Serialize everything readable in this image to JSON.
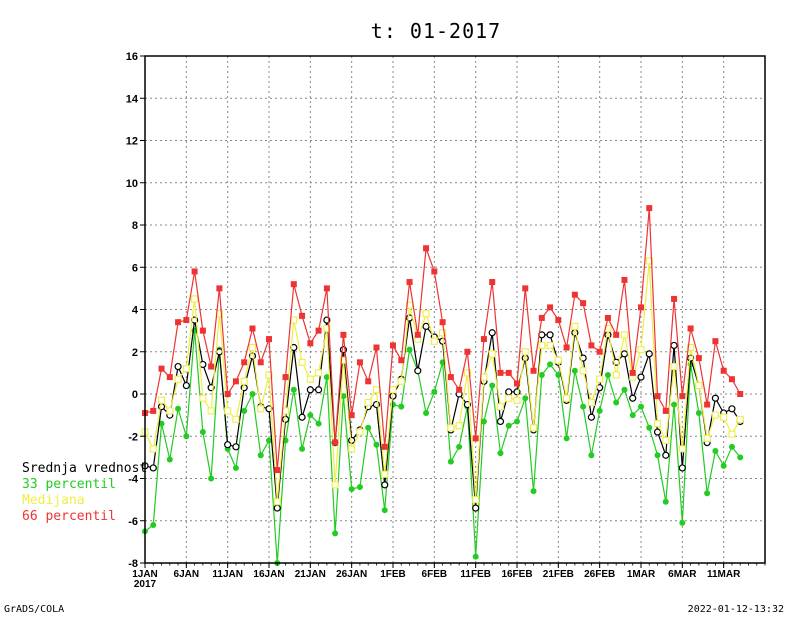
{
  "chart_data": {
    "type": "line",
    "title": "t: 01-2017",
    "ylim": [
      -8,
      16
    ],
    "yticks": [
      -8,
      -6,
      -4,
      -2,
      0,
      2,
      4,
      6,
      8,
      10,
      12,
      14,
      16
    ],
    "grid": true,
    "x_start": "2017-01-01",
    "x_end": "2017-03-17",
    "x_tick_labels": [
      "1JAN",
      "6JAN",
      "11JAN",
      "16JAN",
      "21JAN",
      "26JAN",
      "1FEB",
      "6FEB",
      "11FEB",
      "16FEB",
      "21FEB",
      "26FEB",
      "1MAR",
      "6MAR",
      "11MAR"
    ],
    "x_year_label": "2017",
    "legend_position": "left",
    "series": [
      {
        "name": "Srednja vrednost",
        "color": "#000000",
        "marker": "open-circle",
        "values": [
          -3.4,
          -3.5,
          -0.6,
          -1.0,
          1.3,
          0.4,
          3.5,
          1.4,
          0.3,
          2.0,
          -2.4,
          -2.5,
          0.3,
          1.8,
          -0.6,
          -0.7,
          -5.4,
          -1.2,
          2.2,
          -1.1,
          0.2,
          0.2,
          3.5,
          -2.3,
          2.1,
          -2.2,
          -1.7,
          -0.6,
          -0.5,
          -4.3,
          -0.1,
          0.7,
          3.6,
          1.1,
          3.2,
          2.7,
          2.5,
          -1.7,
          0.0,
          -0.5,
          -5.4,
          0.6,
          2.9,
          -1.3,
          0.1,
          0.1,
          1.7,
          -1.7,
          2.8,
          2.8,
          1.5,
          -0.3,
          2.9,
          1.7,
          -1.1,
          0.3,
          2.8,
          1.5,
          1.9,
          -0.2,
          0.8,
          1.9,
          -1.8,
          -2.9,
          2.3,
          -3.5,
          1.7,
          0.4,
          -2.3,
          -0.2,
          -0.9,
          -0.7,
          -1.3
        ]
      },
      {
        "name": "33 percentil",
        "color": "#22cc22",
        "marker": "filled-circle",
        "values": [
          -6.5,
          -6.2,
          -1.4,
          -3.1,
          -0.7,
          -2.0,
          3.0,
          -1.8,
          -4.0,
          2.1,
          -2.6,
          -3.5,
          -0.8,
          0.0,
          -2.9,
          -2.2,
          -8.0,
          -2.2,
          0.2,
          -2.6,
          -1.0,
          -1.4,
          0.8,
          -6.6,
          -0.1,
          -4.5,
          -4.4,
          -1.6,
          -2.4,
          -5.5,
          -0.5,
          -0.6,
          2.1,
          1.1,
          -0.9,
          0.1,
          1.5,
          -3.2,
          -2.5,
          -0.6,
          -7.7,
          -1.3,
          0.4,
          -2.8,
          -1.5,
          -1.3,
          -0.2,
          -4.6,
          0.9,
          1.4,
          0.9,
          -2.1,
          1.1,
          -0.6,
          -2.9,
          -0.8,
          0.9,
          -0.4,
          0.2,
          -1.0,
          -0.6,
          -1.6,
          -2.9,
          -5.1,
          -0.5,
          -6.1,
          1.4,
          -0.9,
          -4.7,
          -2.7,
          -3.4,
          -2.5,
          -3.0
        ]
      },
      {
        "name": "Medijana",
        "color": "#eeee44",
        "marker": "open-square",
        "values": [
          -1.8,
          -2.6,
          -0.3,
          -0.8,
          0.7,
          1.2,
          4.5,
          -0.2,
          -0.8,
          3.8,
          -0.8,
          -1.2,
          0.6,
          2.2,
          -0.7,
          0.9,
          -5.1,
          -0.8,
          3.5,
          1.5,
          0.7,
          1.0,
          3.1,
          -4.3,
          1.6,
          -2.6,
          -1.8,
          -0.4,
          0.2,
          -3.8,
          0.2,
          0.6,
          4.2,
          2.6,
          3.8,
          2.5,
          2.9,
          -1.6,
          -1.5,
          1.0,
          -5.0,
          0.8,
          1.9,
          -0.6,
          -0.2,
          -0.3,
          2.0,
          -1.6,
          2.3,
          2.3,
          1.6,
          -0.2,
          3.2,
          1.1,
          -0.4,
          0.7,
          3.1,
          0.9,
          2.8,
          0.8,
          2.1,
          6.3,
          -1.4,
          -2.2,
          1.3,
          -2.6,
          2.2,
          0.4,
          -2.1,
          -1.0,
          -1.1,
          -1.9,
          -1.2
        ]
      },
      {
        "name": "66 percentil",
        "color": "#ee3333",
        "marker": "filled-square",
        "values": [
          -0.9,
          -0.8,
          1.2,
          0.8,
          3.4,
          3.5,
          5.8,
          3.0,
          1.3,
          5.0,
          0.0,
          0.6,
          1.5,
          3.1,
          1.5,
          2.6,
          -3.6,
          0.8,
          5.2,
          3.7,
          2.4,
          3.0,
          5.0,
          -2.3,
          2.8,
          -1.0,
          1.5,
          0.6,
          2.2,
          -2.5,
          2.3,
          1.6,
          5.3,
          2.8,
          6.9,
          5.8,
          3.4,
          0.8,
          0.2,
          2.0,
          -2.1,
          2.6,
          5.3,
          1.0,
          1.0,
          0.5,
          5.0,
          1.1,
          3.6,
          4.1,
          3.5,
          2.2,
          4.7,
          4.3,
          2.3,
          2.0,
          3.6,
          2.8,
          5.4,
          1.0,
          4.1,
          8.8,
          -0.1,
          -0.8,
          4.5,
          -0.1,
          3.1,
          1.7,
          -0.5,
          2.5,
          1.1,
          0.7,
          0.0
        ]
      }
    ]
  },
  "footer": {
    "left": "GrADS/COLA",
    "right": "2022-01-12-13:32"
  }
}
